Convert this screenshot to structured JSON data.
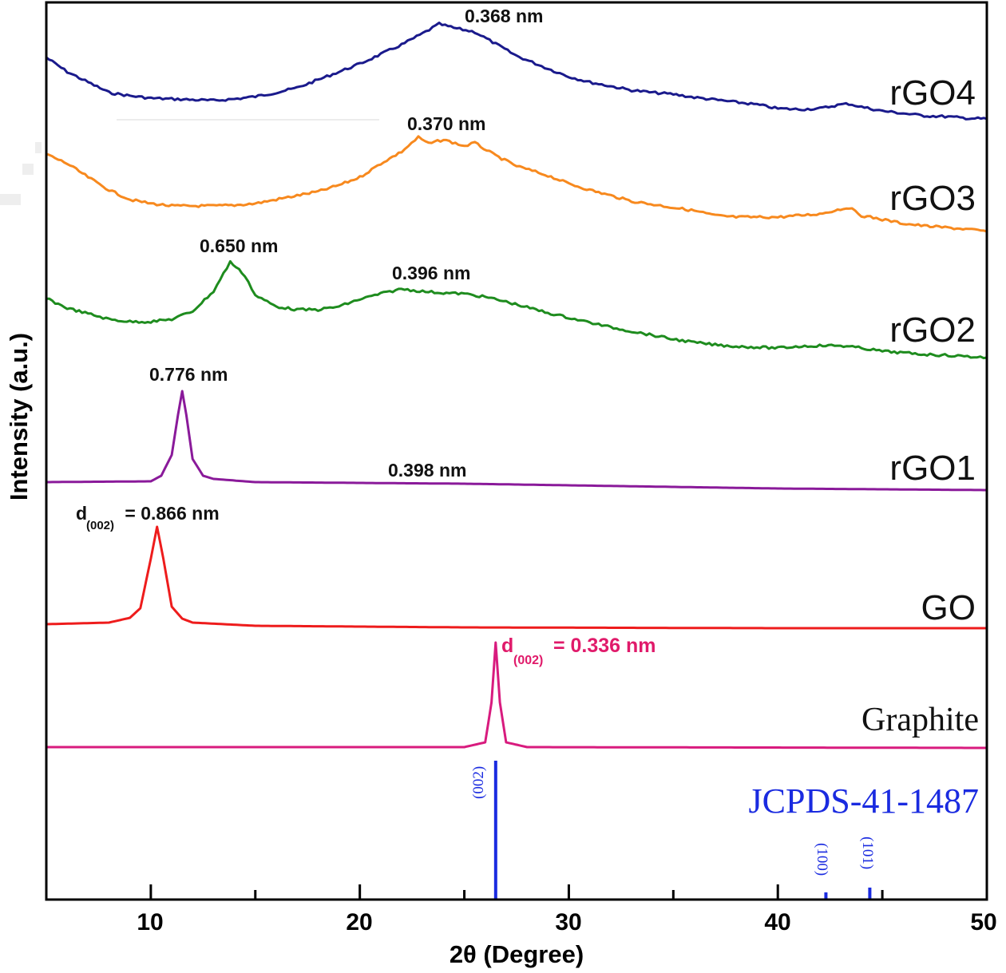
{
  "chart_data": {
    "type": "line",
    "title": "",
    "xlabel": "2θ (Degree)",
    "ylabel": "Intensity (a.u.)",
    "xlim": [
      5,
      50
    ],
    "ylim": [
      0,
      1124
    ],
    "xticks": [
      10,
      20,
      30,
      40,
      50
    ],
    "xtick_labels": [
      "10",
      "20",
      "30",
      "40",
      "50"
    ],
    "minor_xticks": [
      15,
      25,
      35,
      45
    ],
    "grid": false,
    "legend": "inline labels at right end of each curve",
    "series": [
      {
        "name": "rGO4",
        "label": "rGO4",
        "color": "#1a1a8c",
        "x": [
          5,
          6,
          7,
          8,
          9,
          10,
          11,
          12,
          13,
          14,
          15,
          16,
          17,
          18,
          19,
          20,
          21,
          22,
          23,
          23.8,
          24.5,
          25.5,
          26.5,
          27.5,
          29,
          30,
          31,
          32,
          33,
          34,
          35,
          36,
          37,
          38,
          39,
          40,
          41,
          42,
          43,
          43.4,
          44,
          45,
          46,
          47,
          48,
          49,
          50
        ],
        "y": [
          1055,
          1037,
          1024,
          1011,
          1007,
          1004,
          1003,
          1002,
          1001,
          1003,
          1006,
          1011,
          1017,
          1027,
          1037,
          1047,
          1059,
          1071,
          1085,
          1097,
          1092,
          1087,
          1072,
          1057,
          1041,
          1031,
          1024,
          1019,
          1014,
          1011,
          1009,
          1005,
          1002,
          999,
          996,
          991,
          990,
          991,
          996,
          997,
          993,
          988,
          985,
          982,
          981,
          979,
          978
        ]
      },
      {
        "name": "rGO3",
        "label": "rGO3",
        "color": "#f7891e",
        "x": [
          5,
          6,
          7,
          8,
          9,
          10,
          11,
          12,
          13,
          14,
          15,
          16,
          17,
          18,
          19,
          20,
          21,
          22,
          22.8,
          23.3,
          24,
          25,
          25.5,
          26.5,
          27.5,
          29,
          30,
          31,
          32,
          33,
          35,
          36,
          37,
          38,
          39,
          40,
          41,
          42,
          43,
          43.4,
          44,
          45,
          46,
          47,
          48,
          49,
          50
        ],
        "y": [
          934,
          922,
          905,
          889,
          877,
          872,
          869,
          869,
          869,
          870,
          872,
          877,
          882,
          887,
          895,
          905,
          922,
          937,
          955,
          947,
          952,
          944,
          948,
          932,
          919,
          907,
          897,
          889,
          882,
          875,
          867,
          863,
          857,
          855,
          855,
          855,
          857,
          859,
          865,
          867,
          857,
          852,
          847,
          844,
          842,
          840,
          837
        ]
      },
      {
        "name": "rGO2",
        "label": "rGO2",
        "color": "#1e8c1e",
        "x": [
          5,
          6,
          7,
          8,
          9,
          10,
          11,
          12,
          13,
          13.8,
          14.5,
          15,
          16,
          17,
          18,
          19,
          20,
          21,
          22,
          23,
          24,
          25,
          26,
          27,
          28,
          29,
          30,
          31,
          32,
          33,
          34,
          35,
          36,
          37,
          38,
          39,
          40,
          41,
          42,
          43,
          44,
          45,
          46,
          47,
          48,
          50
        ],
        "y": [
          753,
          741,
          734,
          727,
          724,
          724,
          727,
          737,
          762,
          799,
          782,
          757,
          743,
          739,
          739,
          743,
          752,
          759,
          765,
          762,
          760,
          759,
          755,
          749,
          742,
          735,
          729,
          723,
          717,
          712,
          707,
          702,
          698,
          695,
          693,
          692,
          691,
          693,
          694,
          694,
          691,
          687,
          685,
          683,
          682,
          679
        ]
      },
      {
        "name": "rGO1",
        "label": "rGO1",
        "color": "#8a1a9a",
        "x": [
          5,
          10,
          10.5,
          11,
          11.3,
          11.5,
          11.7,
          12,
          12.5,
          13,
          15,
          20,
          25,
          30,
          40,
          50
        ],
        "y": [
          523,
          524,
          531,
          557,
          607,
          637,
          607,
          552,
          531,
          527,
          523,
          522,
          521,
          519,
          515,
          513
        ]
      },
      {
        "name": "GO",
        "label": "GO",
        "color": "#ee1c1c",
        "x": [
          5,
          8,
          9,
          9.5,
          10,
          10.3,
          10.6,
          11,
          11.5,
          12,
          15,
          25,
          40,
          50
        ],
        "y": [
          345,
          347,
          353,
          365,
          427,
          467,
          427,
          367,
          352,
          347,
          343,
          341,
          340,
          340
        ]
      },
      {
        "name": "Graphite",
        "label": "Graphite",
        "color": "#d81b7e",
        "x": [
          5,
          25,
          26,
          26.3,
          26.5,
          26.7,
          27,
          28,
          50
        ],
        "y": [
          191,
          191,
          197,
          247,
          322,
          247,
          197,
          191,
          190
        ]
      }
    ],
    "reference": {
      "name": "JCPDS-41-1487",
      "color": "#1a2be0",
      "sticks": [
        {
          "x": 26.5,
          "hkl": "(002)",
          "height": 174
        },
        {
          "x": 42.3,
          "hkl": "(100)",
          "height": 9
        },
        {
          "x": 44.4,
          "hkl": "(101)",
          "height": 15
        }
      ]
    },
    "annotations": [
      {
        "series": "rGO4",
        "text": "0.368 nm",
        "x": 23.8
      },
      {
        "series": "rGO3",
        "text": "0.370 nm",
        "x": 23.3
      },
      {
        "series": "rGO2",
        "text": "0.650 nm",
        "x": 13.8
      },
      {
        "series": "rGO2",
        "text": "0.396 nm",
        "x": 22.5
      },
      {
        "series": "rGO1",
        "text": "0.776 nm",
        "x": 11.5
      },
      {
        "series": "rGO1",
        "text": "0.398 nm",
        "x": 22.5
      },
      {
        "series": "GO",
        "prefix": "d",
        "subscript": "(002)",
        "text": " = 0.866 nm",
        "x": 10.3
      },
      {
        "series": "Graphite",
        "prefix": "d",
        "subscript": "(002)",
        "text": " = 0.336 nm",
        "x": 26.5
      }
    ]
  }
}
